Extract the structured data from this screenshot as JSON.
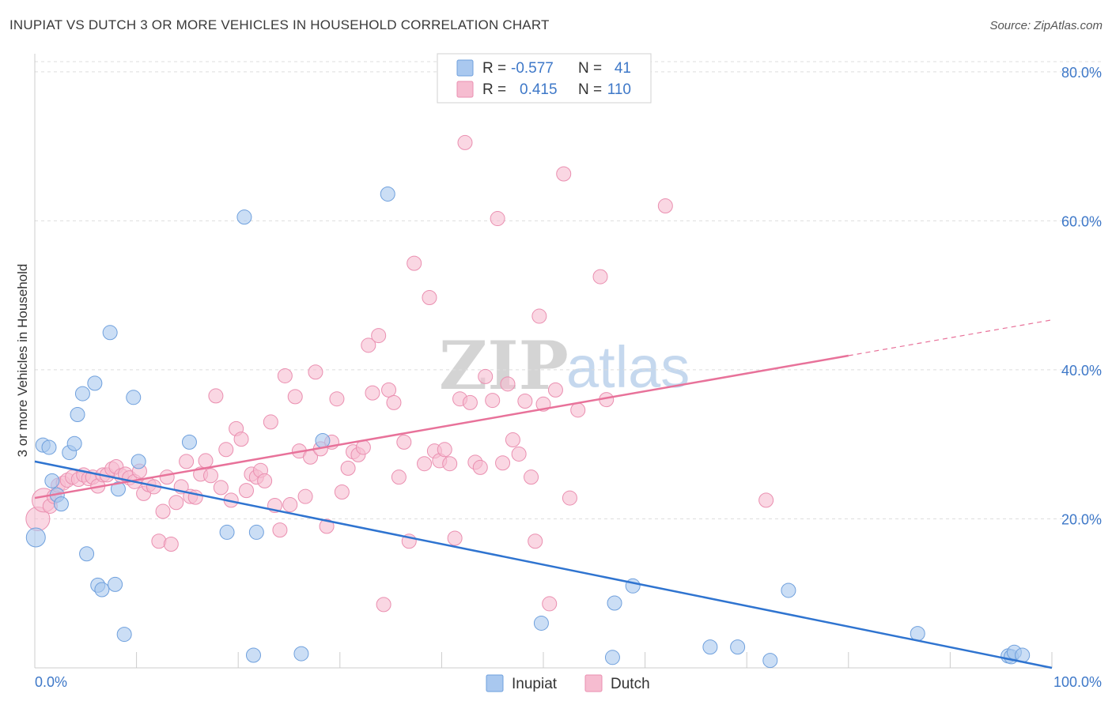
{
  "header": {
    "title": "INUPIAT VS DUTCH 3 OR MORE VEHICLES IN HOUSEHOLD CORRELATION CHART",
    "source": "Source: ZipAtlas.com"
  },
  "legend": {
    "rows": [
      {
        "r_label": "R =",
        "r_value": "-0.577",
        "n_label": "N =",
        "n_value": "41"
      },
      {
        "r_label": "R =",
        "r_value": "0.415",
        "n_label": "N =",
        "n_value": "110"
      }
    ]
  },
  "bottom_legend": [
    "Inupiat",
    "Dutch"
  ],
  "watermark": {
    "zip": "ZIP",
    "atlas": "atlas"
  },
  "colors": {
    "inupiat_fill": "#a9c8ef",
    "inupiat_stroke": "#6fa0dd",
    "inupiat_line": "#2f74d0",
    "dutch_fill": "#f6bcd0",
    "dutch_stroke": "#ea8fb0",
    "dutch_line": "#e8729a",
    "tick_text": "#3e78c8",
    "grid": "#dddddd"
  },
  "chart_data": {
    "type": "scatter",
    "title": "INUPIAT VS DUTCH 3 OR MORE VEHICLES IN HOUSEHOLD CORRELATION CHART",
    "xlabel": "",
    "ylabel": "3 or more Vehicles in Household",
    "xlim": [
      0,
      100
    ],
    "ylim": [
      0,
      82
    ],
    "x_tick_labels": [
      "0.0%",
      "100.0%"
    ],
    "y_ticks": [
      20,
      40,
      60,
      80
    ],
    "y_tick_labels": [
      "20.0%",
      "40.0%",
      "60.0%",
      "80.0%"
    ],
    "grid": true,
    "legend_position": "top-center",
    "series": [
      {
        "name": "Inupiat",
        "r": -0.577,
        "n": 41,
        "trend": {
          "x0": 0,
          "y0": 27.7,
          "x1": 100,
          "y1": 0
        },
        "points": [
          [
            0.1,
            17.5
          ],
          [
            0.8,
            29.9
          ],
          [
            1.4,
            29.6
          ],
          [
            1.7,
            25.1
          ],
          [
            2.2,
            23.2
          ],
          [
            2.6,
            22.0
          ],
          [
            3.4,
            28.9
          ],
          [
            3.9,
            30.1
          ],
          [
            4.2,
            34.0
          ],
          [
            4.7,
            36.8
          ],
          [
            5.1,
            15.3
          ],
          [
            5.9,
            38.2
          ],
          [
            6.2,
            11.1
          ],
          [
            6.6,
            10.5
          ],
          [
            7.4,
            45.0
          ],
          [
            7.9,
            11.2
          ],
          [
            8.2,
            24.0
          ],
          [
            8.8,
            4.5
          ],
          [
            9.7,
            36.3
          ],
          [
            10.2,
            27.7
          ],
          [
            15.2,
            30.3
          ],
          [
            18.9,
            18.2
          ],
          [
            20.6,
            60.5
          ],
          [
            21.5,
            1.7
          ],
          [
            21.8,
            18.2
          ],
          [
            26.2,
            1.9
          ],
          [
            28.3,
            30.5
          ],
          [
            34.7,
            63.6
          ],
          [
            49.8,
            6.0
          ],
          [
            56.8,
            1.4
          ],
          [
            57.0,
            8.7
          ],
          [
            58.8,
            11.0
          ],
          [
            66.4,
            2.8
          ],
          [
            69.1,
            2.8
          ],
          [
            72.3,
            1.0
          ],
          [
            74.1,
            10.4
          ],
          [
            86.8,
            4.6
          ],
          [
            95.7,
            1.6
          ],
          [
            96.0,
            1.5
          ],
          [
            96.3,
            2.1
          ],
          [
            97.1,
            1.7
          ]
        ]
      },
      {
        "name": "Dutch",
        "r": 0.415,
        "n": 110,
        "trend": {
          "x0": 0,
          "y0": 22.8,
          "x1": 80,
          "y1": 41.9
        },
        "trend_ext": {
          "x0": 80,
          "y0": 41.9,
          "x1": 100,
          "y1": 46.7
        },
        "points": [
          [
            0.3,
            20.0
          ],
          [
            0.9,
            22.5
          ],
          [
            1.5,
            21.7
          ],
          [
            1.9,
            23.0
          ],
          [
            2.3,
            24.5
          ],
          [
            2.8,
            24.8
          ],
          [
            3.2,
            25.2
          ],
          [
            3.7,
            25.6
          ],
          [
            4.3,
            25.3
          ],
          [
            4.8,
            25.9
          ],
          [
            5.3,
            25.4
          ],
          [
            5.7,
            25.6
          ],
          [
            6.2,
            24.4
          ],
          [
            6.7,
            25.9
          ],
          [
            7.1,
            25.9
          ],
          [
            7.6,
            26.7
          ],
          [
            8.0,
            27.0
          ],
          [
            8.5,
            25.8
          ],
          [
            8.9,
            26.0
          ],
          [
            9.3,
            25.5
          ],
          [
            9.8,
            25.0
          ],
          [
            10.3,
            26.4
          ],
          [
            10.7,
            23.4
          ],
          [
            11.2,
            24.6
          ],
          [
            11.7,
            24.3
          ],
          [
            12.2,
            17.0
          ],
          [
            12.6,
            21.0
          ],
          [
            13.0,
            25.6
          ],
          [
            13.4,
            16.6
          ],
          [
            13.9,
            22.2
          ],
          [
            14.4,
            24.3
          ],
          [
            14.9,
            27.7
          ],
          [
            15.3,
            23.0
          ],
          [
            15.8,
            22.9
          ],
          [
            16.3,
            26.0
          ],
          [
            16.8,
            27.8
          ],
          [
            17.3,
            25.8
          ],
          [
            17.8,
            36.5
          ],
          [
            18.3,
            24.2
          ],
          [
            18.8,
            29.3
          ],
          [
            19.3,
            22.5
          ],
          [
            19.8,
            32.1
          ],
          [
            20.3,
            30.7
          ],
          [
            20.8,
            23.8
          ],
          [
            21.3,
            26.0
          ],
          [
            21.8,
            25.6
          ],
          [
            22.2,
            26.5
          ],
          [
            22.6,
            25.1
          ],
          [
            23.2,
            33.0
          ],
          [
            23.6,
            21.8
          ],
          [
            24.1,
            18.5
          ],
          [
            24.6,
            39.2
          ],
          [
            25.1,
            21.9
          ],
          [
            25.6,
            36.4
          ],
          [
            26.0,
            29.1
          ],
          [
            26.6,
            23.0
          ],
          [
            27.1,
            28.3
          ],
          [
            27.6,
            39.7
          ],
          [
            28.1,
            29.4
          ],
          [
            28.7,
            19.0
          ],
          [
            29.2,
            30.3
          ],
          [
            29.7,
            36.1
          ],
          [
            30.2,
            23.6
          ],
          [
            30.8,
            26.8
          ],
          [
            31.3,
            29.0
          ],
          [
            31.8,
            28.6
          ],
          [
            32.3,
            29.6
          ],
          [
            32.8,
            43.3
          ],
          [
            33.2,
            36.9
          ],
          [
            33.8,
            44.6
          ],
          [
            34.3,
            8.5
          ],
          [
            34.8,
            37.3
          ],
          [
            35.3,
            35.6
          ],
          [
            35.8,
            25.6
          ],
          [
            36.3,
            30.3
          ],
          [
            36.8,
            17.0
          ],
          [
            37.3,
            54.3
          ],
          [
            38.3,
            27.4
          ],
          [
            38.8,
            49.7
          ],
          [
            39.3,
            29.1
          ],
          [
            39.8,
            27.8
          ],
          [
            40.3,
            29.3
          ],
          [
            40.8,
            27.4
          ],
          [
            41.3,
            17.4
          ],
          [
            41.8,
            36.1
          ],
          [
            42.3,
            70.5
          ],
          [
            42.8,
            35.6
          ],
          [
            43.3,
            27.6
          ],
          [
            43.8,
            26.9
          ],
          [
            44.3,
            39.1
          ],
          [
            45.0,
            35.9
          ],
          [
            45.5,
            60.3
          ],
          [
            46.0,
            27.5
          ],
          [
            46.5,
            38.1
          ],
          [
            47.0,
            30.6
          ],
          [
            47.6,
            28.7
          ],
          [
            48.2,
            35.8
          ],
          [
            48.8,
            25.6
          ],
          [
            49.2,
            17.0
          ],
          [
            49.6,
            47.2
          ],
          [
            50.0,
            35.4
          ],
          [
            50.6,
            8.6
          ],
          [
            51.2,
            37.3
          ],
          [
            52.0,
            66.3
          ],
          [
            52.6,
            22.8
          ],
          [
            53.4,
            34.6
          ],
          [
            55.6,
            52.5
          ],
          [
            56.2,
            36.0
          ],
          [
            62.0,
            62.0
          ],
          [
            71.9,
            22.5
          ]
        ]
      }
    ]
  }
}
